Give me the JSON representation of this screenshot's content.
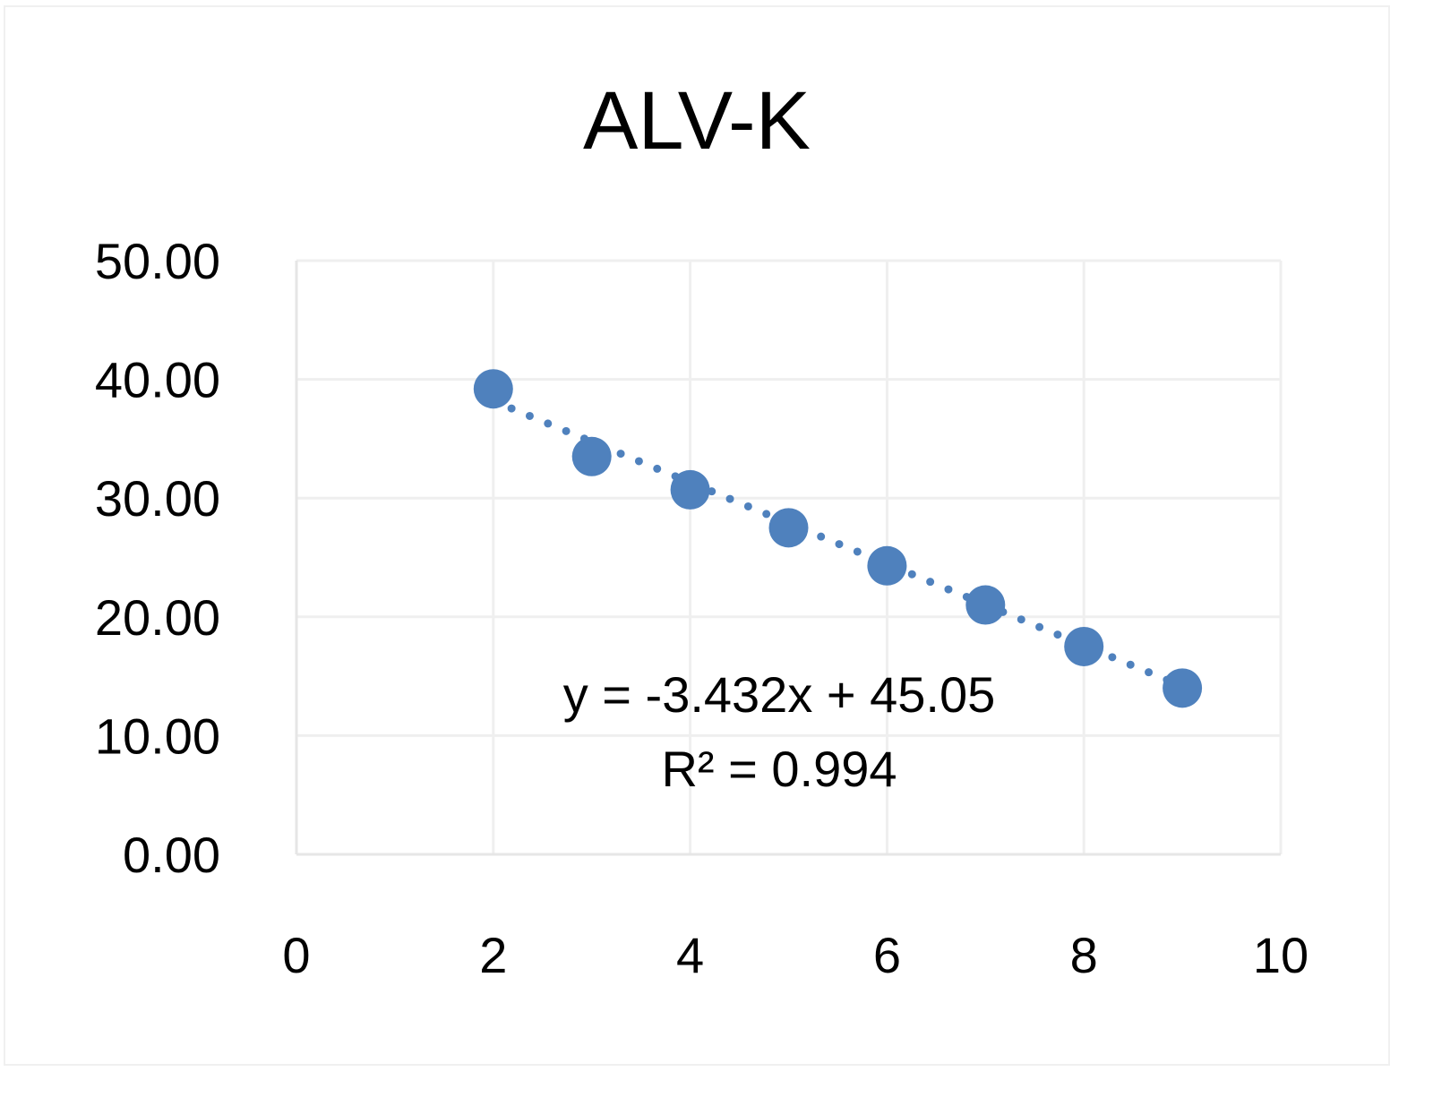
{
  "chart_data": {
    "type": "scatter",
    "title": "ALV-K",
    "xlabel": "",
    "ylabel": "",
    "xlim": [
      0,
      10
    ],
    "ylim": [
      0,
      50
    ],
    "x_ticks": [
      "0",
      "2",
      "4",
      "6",
      "8",
      "10"
    ],
    "y_ticks": [
      "0.00",
      "10.00",
      "20.00",
      "30.00",
      "40.00",
      "50.00"
    ],
    "grid": true,
    "marker_color": "#4f81bd",
    "series": [
      {
        "x": [
          2,
          3,
          4,
          5,
          6,
          7,
          8,
          9
        ],
        "y": [
          39.2,
          33.5,
          30.7,
          27.5,
          24.3,
          21.0,
          17.5,
          14.0
        ]
      }
    ],
    "trendline": {
      "type": "linear",
      "style": "dotted",
      "slope": -3.432,
      "intercept": 45.05,
      "equation_text": "y = -3.432x + 45.05",
      "r2_text": "R² = 0.994"
    }
  }
}
